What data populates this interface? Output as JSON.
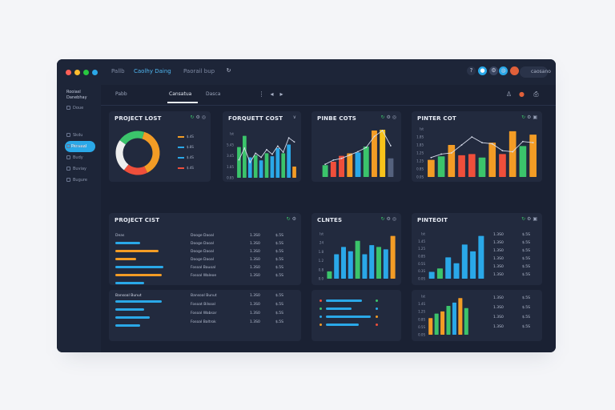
{
  "window": {
    "tabs": [
      "Pallb",
      "Caolhy Daing",
      "Paorail bup"
    ],
    "account_label": "caosano",
    "controls": {
      "close": "#ff5f57",
      "minimize": "#febc2e",
      "maximize": "#28c840"
    }
  },
  "sidebar": {
    "brand": [
      "Rooiasl",
      "Danebhay"
    ],
    "items": [
      "Doue",
      "Pansaal",
      "Skdu",
      "Danay",
      "Budy",
      "Buviay",
      "Bugure"
    ],
    "active_index": 1
  },
  "header": {
    "tabs": [
      "Pabb",
      "Cansatua",
      "Dasca"
    ],
    "active_index": 1
  },
  "colors": {
    "green": "#3bc46b",
    "orange": "#f39c25",
    "blue": "#2aa8e8",
    "red": "#ef4f3b",
    "yellow": "#f7c21a",
    "white": "#eeeeee"
  },
  "cards": {
    "donut": {
      "title": "PROJECT LOST",
      "chart_data": {
        "type": "pie",
        "slices": [
          {
            "value": 38,
            "color": "#f39c25"
          },
          {
            "value": 18,
            "color": "#ef4f3b"
          },
          {
            "value": 24,
            "color": "#eeeeee"
          },
          {
            "value": 20,
            "color": "#3bc46b"
          }
        ]
      },
      "legend": [
        {
          "label": "$.4S",
          "color": "#f39c25"
        },
        {
          "label": "$.8S",
          "color": "#2aa8e8"
        },
        {
          "label": "$.4S",
          "color": "#2aa8e8"
        },
        {
          "label": "$.4S",
          "color": "#ef4f3b"
        }
      ]
    },
    "cost": {
      "title": "FORQUETT COST",
      "yticks": [
        "Ist",
        "5.45",
        "3.45",
        "1.85",
        "0.85"
      ],
      "chart_data": {
        "type": "bar",
        "values": [
          60,
          82,
          40,
          44,
          34,
          48,
          42,
          58,
          48,
          65,
          22
        ],
        "colors": [
          "#3bc46b",
          "#3bc46b",
          "#2aa8e8",
          "#3bc46b",
          "#2aa8e8",
          "#3bc46b",
          "#2aa8e8",
          "#2aa8e8",
          "#3bc46b",
          "#2aa8e8",
          "#f39c25"
        ],
        "line": [
          35,
          58,
          30,
          48,
          40,
          55,
          46,
          62,
          50,
          78,
          70
        ]
      }
    },
    "prise": {
      "title": "PINBE COTS",
      "chart_data": {
        "type": "bar",
        "values": [
          28,
          36,
          50,
          56,
          58,
          72,
          110,
          112,
          44
        ],
        "colors": [
          "#3bc46b",
          "#ef4f3b",
          "#ef4f3b",
          "#f39c25",
          "#2aa8e8",
          "#3bc46b",
          "#f39c25",
          "#f7c21a",
          "#55627e"
        ],
        "line": [
          30,
          40,
          44,
          52,
          60,
          70,
          96,
          110,
          74
        ]
      }
    },
    "pinter": {
      "title": "PINTER COT",
      "yticks": [
        "Ist",
        "1.8S",
        "1.85",
        "1.2S",
        "1.25",
        "0.8S",
        "0.0S"
      ],
      "chart_data": {
        "type": "bar",
        "values": [
          30,
          36,
          56,
          38,
          40,
          34,
          60,
          40,
          80,
          54,
          74
        ],
        "colors": [
          "#f39c25",
          "#3bc46b",
          "#f39c25",
          "#ef4f3b",
          "#ef4f3b",
          "#3bc46b",
          "#f39c25",
          "#ef4f3b",
          "#f39c25",
          "#3bc46b",
          "#f39c25"
        ],
        "line": [
          34,
          40,
          42,
          56,
          70,
          60,
          58,
          46,
          44,
          62,
          60
        ]
      }
    },
    "table1": {
      "title": "PROJECT CIST",
      "header": "Deas",
      "rows": [
        {
          "name": "Dooge Daoal",
          "v1": "1.3S0",
          "v2": "$.5S"
        },
        {
          "name": "Dooge Daoal",
          "v1": "1.3S0",
          "v2": "$.5S"
        },
        {
          "name": "Dooge Daoal",
          "v1": "1.3S0",
          "v2": "$.5S"
        },
        {
          "name": "Dooge Daoal",
          "v1": "1.3S0",
          "v2": "$.5S"
        },
        {
          "name": "Fosoal Bauoal",
          "v1": "1.3S0",
          "v2": "$.5S"
        },
        {
          "name": "Fosoal Waleoe",
          "v1": "1.3S0",
          "v2": "$.5S"
        }
      ],
      "bars": [
        {
          "value": 0.26,
          "color": "#2aa8e8"
        },
        {
          "value": 0.45,
          "color": "#f39c25"
        },
        {
          "value": 0.22,
          "color": "#f39c25"
        },
        {
          "value": 0.5,
          "color": "#2aa8e8"
        },
        {
          "value": 0.48,
          "color": "#f39c25"
        },
        {
          "value": 0.3,
          "color": "#2aa8e8"
        }
      ]
    },
    "table2": {
      "header": "Bansoal Bunut",
      "rows": [
        {
          "name": "Bansoal Bunut",
          "v1": "1.3S0",
          "v2": "$.5S"
        },
        {
          "name": "Fosoat Bilsoal",
          "v1": "1.3S0",
          "v2": "$.5S"
        },
        {
          "name": "Fosoal Wabsar",
          "v1": "1.3S0",
          "v2": "$.5S"
        },
        {
          "name": "Fosoal Baltrok",
          "v1": "1.3S0",
          "v2": "$.5S"
        }
      ],
      "bars": [
        {
          "value": 0.48,
          "color": "#2aa8e8"
        },
        {
          "value": 0.3,
          "color": "#2aa8e8"
        },
        {
          "value": 0.36,
          "color": "#2aa8e8"
        },
        {
          "value": 0.26,
          "color": "#2aa8e8"
        }
      ]
    },
    "clients": {
      "title": "CLNTES",
      "chart_data": {
        "type": "bar",
        "values": [
          12,
          40,
          52,
          45,
          62,
          40,
          55,
          52,
          48,
          70
        ],
        "colors": [
          "#3bc46b",
          "#2aa8e8",
          "#2aa8e8",
          "#2aa8e8",
          "#3bc46b",
          "#2aa8e8",
          "#2aa8e8",
          "#3bc46b",
          "#2aa8e8",
          "#f39c25"
        ]
      },
      "yticks": [
        "Ist",
        "24",
        "1.8",
        "1.2",
        "0.8",
        "0.0"
      ]
    },
    "clients_list": {
      "bars": [
        {
          "value": 0.5,
          "color": "#2aa8e8"
        },
        {
          "value": 0.35,
          "color": "#2aa8e8"
        },
        {
          "value": 0.62,
          "color": "#2aa8e8"
        },
        {
          "value": 0.45,
          "color": "#2aa8e8"
        }
      ]
    },
    "pinecot": {
      "title": "PINTEOIT",
      "yticks": [
        "Ist",
        "1.45",
        "1.25",
        "0.8S",
        "0.5S",
        "0.3S",
        "0.0S"
      ],
      "rows": [
        {
          "v1": "1.3S0",
          "v2": "$.5S"
        },
        {
          "v1": "1.3S0",
          "v2": "$.5S"
        },
        {
          "v1": "1.3S0",
          "v2": "$.5S"
        },
        {
          "v1": "1.3S0",
          "v2": "$.5S"
        },
        {
          "v1": "1.3S0",
          "v2": "$.5S"
        },
        {
          "v1": "1.3S0",
          "v2": "$.5S"
        }
      ],
      "chart_data": {
        "type": "bar",
        "values": [
          8,
          12,
          25,
          18,
          40,
          32,
          50
        ],
        "colors": [
          "#2aa8e8",
          "#3bc46b",
          "#2aa8e8",
          "#2aa8e8",
          "#2aa8e8",
          "#2aa8e8",
          "#2aa8e8"
        ]
      }
    },
    "bottom_right": {
      "yticks": [
        "Ist",
        "1.4S",
        "1.2S",
        "0.8S",
        "0.5S",
        "0.0S"
      ],
      "rows": [
        {
          "v1": "1.3S0",
          "v2": "$.5S"
        },
        {
          "v1": "1.3S0",
          "v2": "$.5S"
        },
        {
          "v1": "1.3S0",
          "v2": "$.5S"
        },
        {
          "v1": "1.3S0",
          "v2": "$.5S"
        }
      ],
      "chart_data": {
        "type": "bar",
        "values": [
          30,
          38,
          42,
          52,
          58,
          66,
          48
        ],
        "colors": [
          "#f39c25",
          "#3bc46b",
          "#f39c25",
          "#3bc46b",
          "#2aa8e8",
          "#f39c25",
          "#3bc46b"
        ]
      }
    }
  }
}
